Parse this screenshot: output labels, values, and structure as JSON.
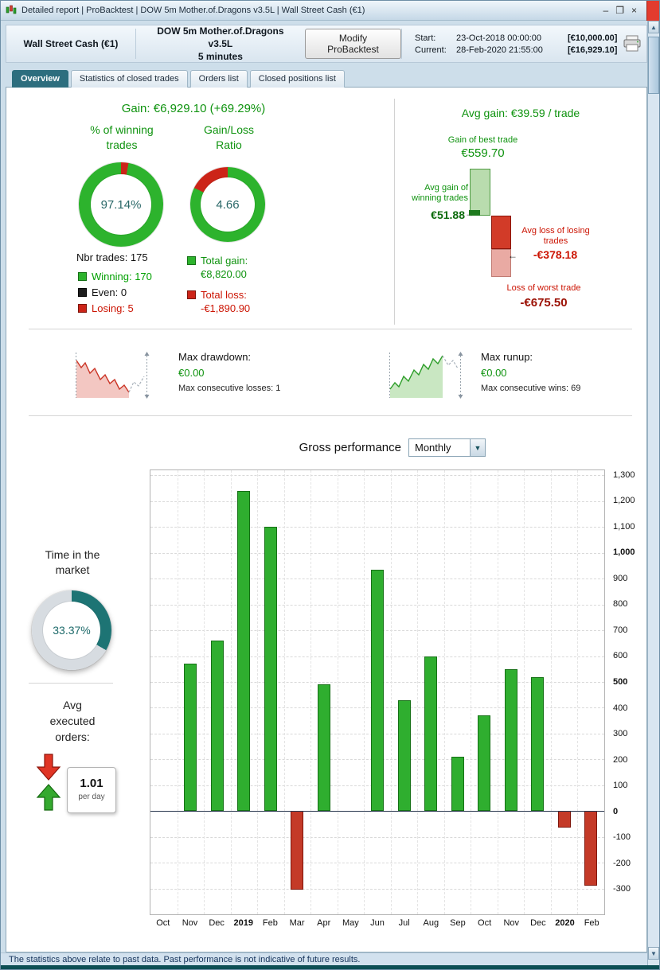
{
  "colors": {
    "green_text": "#0f930f",
    "green_bright": "#00a000",
    "green_ring": "#2db32d",
    "green_dark": "#157015",
    "red": "#cc2418",
    "red_text": "#cc1504",
    "dark_red": "#9b1004",
    "teal": "#1d7474",
    "donut_track": "#d7dce1",
    "donut_value_text": "#2a6868"
  },
  "icons": {
    "dropdown_arrow": "▼",
    "scroll_up": "▲",
    "scroll_down": "▼",
    "arrow_right": "→",
    "arrow_left": "←",
    "minimize": "–",
    "maximize": "❐",
    "close": "×"
  },
  "title_bar": {
    "title": "Detailed report | ProBacktest | DOW 5m Mother.of.Dragons v3.5L | Wall Street Cash (€1)"
  },
  "header": {
    "account": "Wall Street Cash (€1)",
    "strategy_name": "DOW 5m Mother.of.Dragons v3.5L",
    "timeframe": "5 minutes",
    "modify_button": "Modify ProBacktest",
    "start_label": "Start:",
    "start_datetime": "23-Oct-2018 00:00:00",
    "start_amount": "[€10,000.00]",
    "current_label": "Current:",
    "current_datetime": "28-Feb-2020 21:55:00",
    "current_amount": "[€16,929.10]"
  },
  "tabs": [
    {
      "label": "Overview"
    },
    {
      "label": "Statistics of closed trades"
    },
    {
      "label": "Orders list"
    },
    {
      "label": "Closed positions list"
    }
  ],
  "overview": {
    "gain_summary": "Gain: €6,929.10 (+69.29%)",
    "winning_donut": {
      "label_line1": "% of winning",
      "label_line2": "trades",
      "value": "97.14%",
      "percent_winning": 97.14,
      "percent_losing": 2.86
    },
    "ratio_donut": {
      "label_line1": "Gain/Loss",
      "label_line2": "Ratio",
      "value": "4.66",
      "green_percent": 82.34
    },
    "trades": {
      "total": "Nbr trades: 175",
      "winning": "Winning: 170",
      "even": "Even: 0",
      "losing": "Losing: 5"
    },
    "totals": {
      "gain_label": "Total gain:",
      "gain_value": "€8,820.00",
      "loss_label": "Total loss:",
      "loss_value": "-€1,890.90"
    },
    "avg_gain_summary": "Avg gain: €39.59 / trade",
    "best_trade": {
      "label": "Gain of best trade",
      "value": "€559.70"
    },
    "avg_win": {
      "label_line1": "Avg gain of",
      "label_line2": "winning trades",
      "value": "€51.88"
    },
    "avg_loss": {
      "label_line1": "Avg loss of losing",
      "label_line2": "trades",
      "value": "-€378.18"
    },
    "worst_trade": {
      "label": "Loss of worst trade",
      "value": "-€675.50"
    },
    "drawdown": {
      "label": "Max drawdown:",
      "value": "€0.00",
      "detail": "Max consecutive losses: 1"
    },
    "runup": {
      "label": "Max runup:",
      "value": "€0.00",
      "detail": "Max consecutive wins: 69"
    }
  },
  "performance": {
    "period_dropdown": "Monthly",
    "time_in_market": {
      "label_line1": "Time in the",
      "label_line2": "market",
      "value": "33.37%",
      "percent": 33.37
    },
    "avg_orders": {
      "label_line1": "Avg",
      "label_line2": "executed",
      "label_line3": "orders:",
      "value": "1.01",
      "unit": "per day"
    }
  },
  "chart_data": {
    "type": "bar",
    "title": "Gross performance",
    "interval": "Monthly",
    "categories": [
      "Oct",
      "Nov",
      "Dec",
      "2019",
      "Feb",
      "Mar",
      "Apr",
      "May",
      "Jun",
      "Jul",
      "Aug",
      "Sep",
      "Oct",
      "Nov",
      "Dec",
      "2020",
      "Feb"
    ],
    "bold_categories": [
      "2019",
      "2020"
    ],
    "values": [
      0,
      570,
      660,
      1240,
      1100,
      -305,
      490,
      0,
      935,
      430,
      600,
      210,
      370,
      550,
      520,
      -65,
      -290
    ],
    "ylim": [
      -400,
      1320
    ],
    "yticks": [
      -300,
      -200,
      -100,
      0,
      100,
      200,
      300,
      400,
      500,
      600,
      700,
      800,
      900,
      1000,
      1100,
      1200,
      1300
    ],
    "ytick_labels": [
      "-300",
      "-200",
      "-100",
      "0",
      "100",
      "200",
      "300",
      "400",
      "500",
      "600",
      "700",
      "800",
      "900",
      "1,000",
      "1,100",
      "1,200",
      "1,300"
    ],
    "bold_ytick_labels": [
      "0",
      "500",
      "1,000"
    ],
    "grid": true,
    "positive_color": "#2fae2f",
    "negative_color": "#c43a28",
    "zero_line_color": "#28364e"
  },
  "footer": {
    "disclaimer": "The statistics above relate to past data. Past performance is not indicative of future results."
  }
}
